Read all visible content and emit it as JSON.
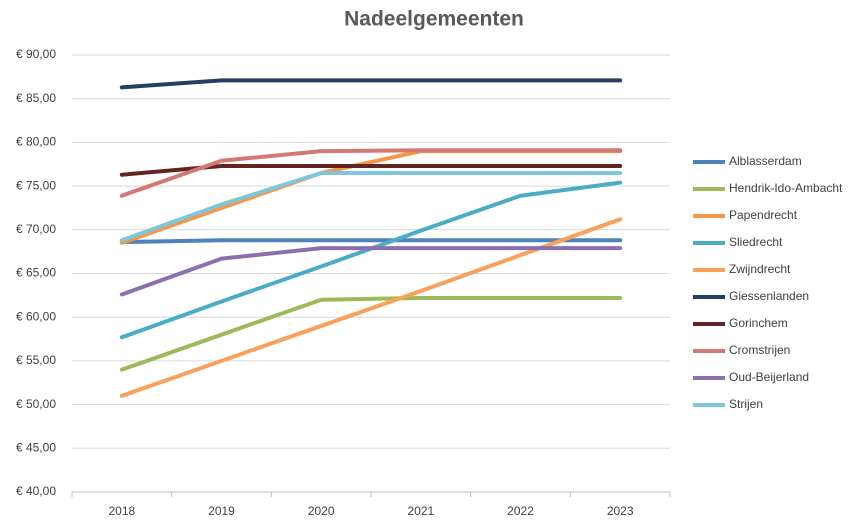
{
  "chart_data": {
    "type": "line",
    "title": "Nadeelgemeenten",
    "categories": [
      "2018",
      "2019",
      "2020",
      "2021",
      "2022",
      "2023"
    ],
    "series": [
      {
        "name": "Alblasserdam",
        "color": "#4f81bd",
        "values": [
          68.6,
          68.8,
          68.8,
          68.8,
          68.8,
          68.8
        ]
      },
      {
        "name": "Hendrik-Ido-Ambacht",
        "color": "#9bbb59",
        "values": [
          54.0,
          58.0,
          62.0,
          62.2,
          62.2,
          62.2
        ]
      },
      {
        "name": "Papendrecht",
        "color": "#f79646",
        "values": [
          68.5,
          72.5,
          76.5,
          79.0,
          79.0,
          79.0
        ]
      },
      {
        "name": "Sliedrecht",
        "color": "#4bacc6",
        "values": [
          57.7,
          61.8,
          65.8,
          69.9,
          73.9,
          75.4
        ]
      },
      {
        "name": "Zwijndrecht",
        "color": "#f9a05a",
        "values": [
          51.0,
          55.0,
          59.0,
          63.0,
          67.1,
          71.2
        ]
      },
      {
        "name": "Giessenlanden",
        "color": "#243f60",
        "values": [
          86.3,
          87.1,
          87.1,
          87.1,
          87.1,
          87.1
        ]
      },
      {
        "name": "Gorinchem",
        "color": "#632523",
        "values": [
          76.3,
          77.3,
          77.3,
          77.3,
          77.3,
          77.3
        ]
      },
      {
        "name": "Cromstrijen",
        "color": "#d47874",
        "values": [
          73.9,
          77.9,
          79.0,
          79.1,
          79.1,
          79.1
        ]
      },
      {
        "name": "Oud-Beijerland",
        "color": "#8c6fae",
        "values": [
          62.6,
          66.7,
          67.9,
          67.9,
          67.9,
          67.9
        ]
      },
      {
        "name": "Strijen",
        "color": "#7fc6d9",
        "values": [
          68.8,
          72.9,
          76.5,
          76.5,
          76.5,
          76.5
        ]
      }
    ],
    "ylim": [
      40,
      90
    ],
    "yticks": [
      {
        "value": 40,
        "label": "€ 40,00"
      },
      {
        "value": 45,
        "label": "€ 45,00"
      },
      {
        "value": 50,
        "label": "€ 50,00"
      },
      {
        "value": 55,
        "label": "€ 55,00"
      },
      {
        "value": 60,
        "label": "€ 60,00"
      },
      {
        "value": 65,
        "label": "€ 65,00"
      },
      {
        "value": 70,
        "label": "€ 70,00"
      },
      {
        "value": 75,
        "label": "€ 75,00"
      },
      {
        "value": 80,
        "label": "€ 80,00"
      },
      {
        "value": 85,
        "label": "€ 85,00"
      },
      {
        "value": 90,
        "label": "€ 90,00"
      }
    ],
    "grid": true,
    "legend": "right"
  }
}
